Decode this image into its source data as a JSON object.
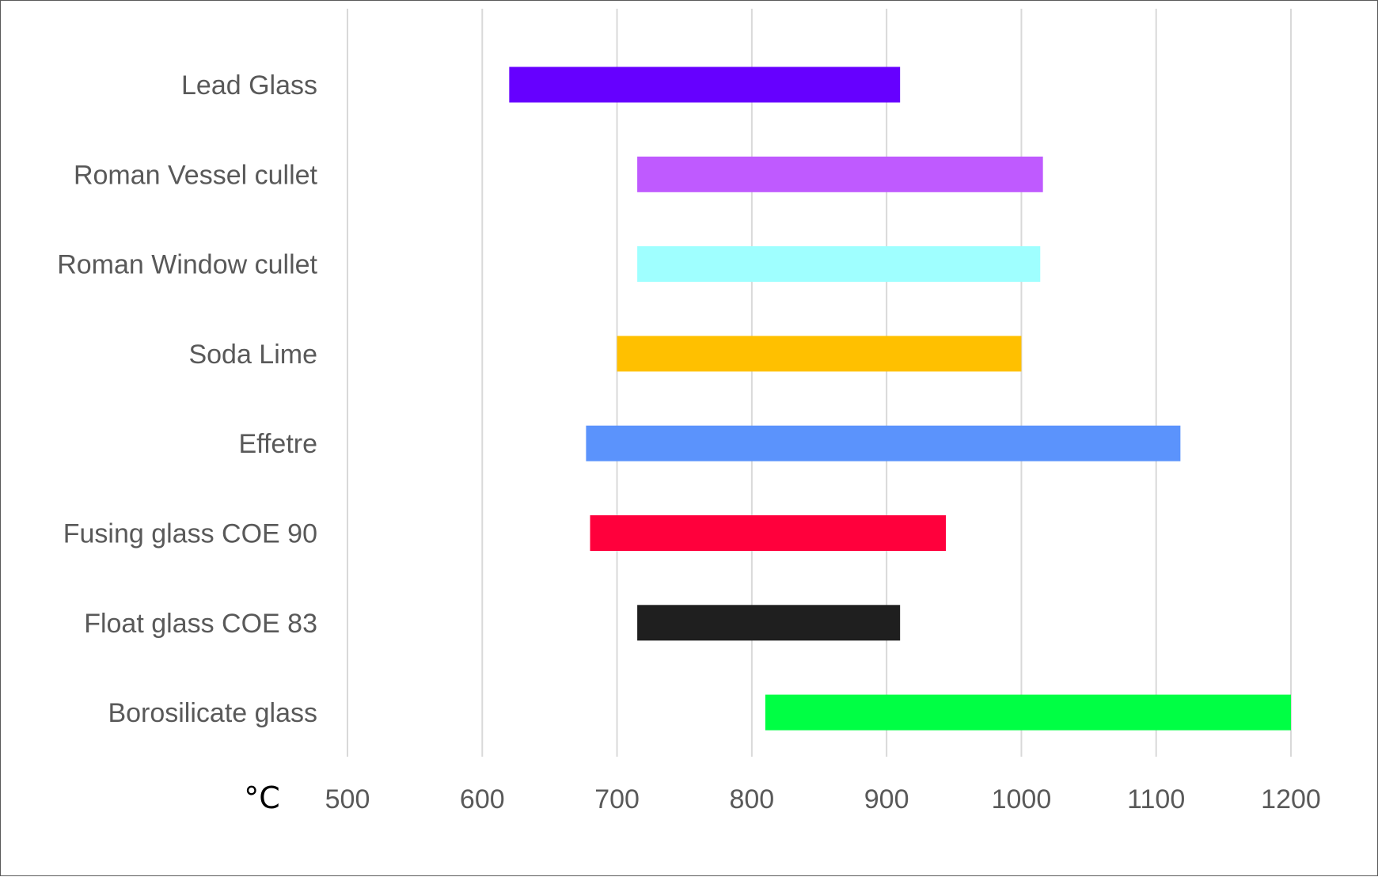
{
  "chart_data": {
    "type": "bar",
    "orientation": "horizontal",
    "unit_label": "°C",
    "xlim": [
      500,
      1200
    ],
    "xticks": [
      500,
      600,
      700,
      800,
      900,
      1000,
      1100,
      1200
    ],
    "grid": true,
    "categories": [
      "Lead Glass",
      "Roman Vessel cullet",
      "Roman Window cullet",
      "Soda Lime",
      "Effetre",
      "Fusing glass COE 90",
      "Float glass COE 83",
      "Borosilicate glass"
    ],
    "ranges": [
      {
        "start": 620,
        "end": 910
      },
      {
        "start": 715,
        "end": 1016
      },
      {
        "start": 715,
        "end": 1014
      },
      {
        "start": 700,
        "end": 1000
      },
      {
        "start": 677,
        "end": 1118
      },
      {
        "start": 680,
        "end": 944
      },
      {
        "start": 715,
        "end": 910
      },
      {
        "start": 810,
        "end": 1200
      }
    ],
    "colors": [
      "#6600FF",
      "#BF5AFF",
      "#9FFFFF",
      "#FFC000",
      "#5B93FC",
      "#FF003C",
      "#1F1F1F",
      "#00FF44"
    ]
  }
}
